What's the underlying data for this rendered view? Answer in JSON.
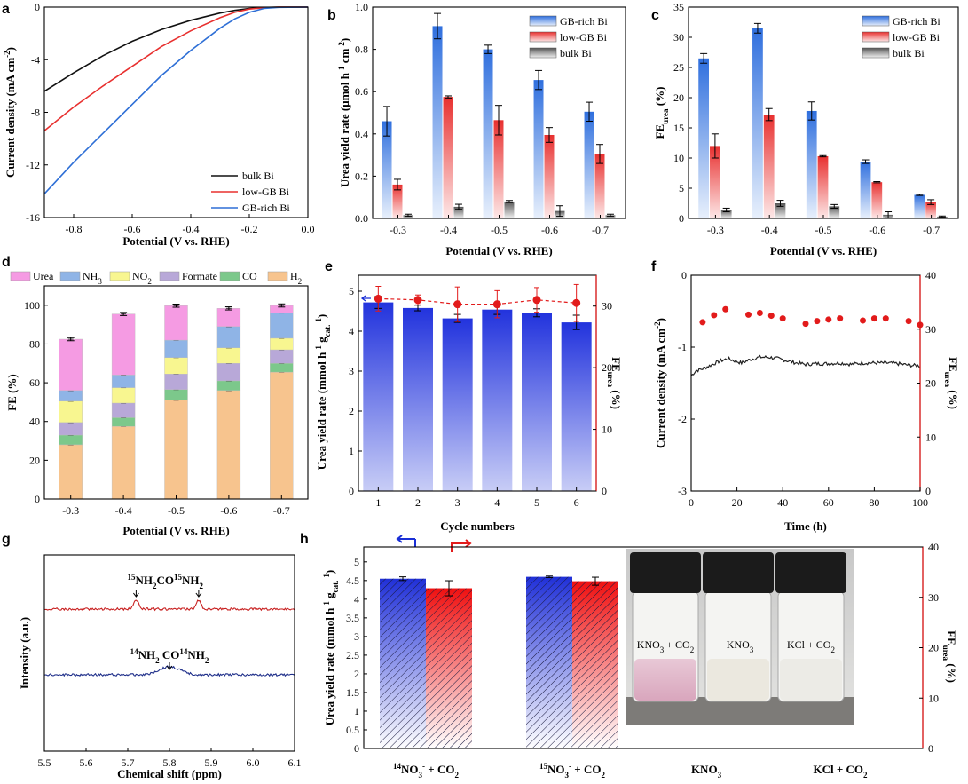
{
  "panel_labels": [
    "a",
    "b",
    "c",
    "d",
    "e",
    "f",
    "g",
    "h"
  ],
  "chart_data": [
    {
      "id": "a",
      "type": "line",
      "xlabel": "Potential (V vs. RHE)",
      "ylabel": "Current density (mA cm-2)",
      "xlim": [
        -0.9,
        0.0
      ],
      "ylim": [
        -16,
        0
      ],
      "xticks": [
        "-0.8",
        "-0.6",
        "-0.4",
        "-0.2",
        "0.0"
      ],
      "yticks": [
        "-16",
        "-12",
        "-8",
        "-4",
        "0"
      ],
      "legend_position": "bottom-right",
      "series": [
        {
          "name": "bulk Bi",
          "color": "#111111",
          "x": [
            -0.9,
            -0.8,
            -0.7,
            -0.6,
            -0.5,
            -0.4,
            -0.3,
            -0.25,
            -0.2,
            -0.15,
            -0.1,
            0.0
          ],
          "y": [
            -6.4,
            -5.0,
            -3.7,
            -2.6,
            -1.7,
            -1.0,
            -0.45,
            -0.25,
            -0.1,
            -0.03,
            0,
            0
          ]
        },
        {
          "name": "low-GB Bi",
          "color": "#e8302f",
          "x": [
            -0.9,
            -0.8,
            -0.7,
            -0.6,
            -0.5,
            -0.4,
            -0.3,
            -0.25,
            -0.2,
            -0.15,
            -0.1,
            0.0
          ],
          "y": [
            -9.4,
            -7.6,
            -6.0,
            -4.5,
            -3.0,
            -1.8,
            -0.8,
            -0.4,
            -0.15,
            -0.05,
            0,
            0
          ]
        },
        {
          "name": "GB-rich Bi",
          "color": "#2e6fd6",
          "x": [
            -0.9,
            -0.8,
            -0.7,
            -0.6,
            -0.5,
            -0.4,
            -0.3,
            -0.25,
            -0.2,
            -0.15,
            -0.1,
            0.0
          ],
          "y": [
            -14.2,
            -11.8,
            -9.6,
            -7.4,
            -5.2,
            -3.3,
            -1.6,
            -0.9,
            -0.4,
            -0.1,
            -0.02,
            0
          ]
        }
      ]
    },
    {
      "id": "b",
      "type": "bar",
      "xlabel": "Potential (V vs. RHE)",
      "ylabel": "Urea yield rate (μmol h-1 cm-2)",
      "ylim": [
        0,
        1.0
      ],
      "yticks": [
        "0.0",
        "0.2",
        "0.4",
        "0.6",
        "0.8",
        "1.0"
      ],
      "categories": [
        "-0.3",
        "-0.4",
        "-0.5",
        "-0.6",
        "-0.7"
      ],
      "legend_position": "top-right",
      "series": [
        {
          "name": "GB-rich Bi",
          "color": "#3b7de0",
          "values": [
            0.46,
            0.91,
            0.8,
            0.655,
            0.505
          ],
          "err": [
            0.07,
            0.06,
            0.02,
            0.045,
            0.045
          ]
        },
        {
          "name": "low-GB Bi",
          "color": "#e8302f",
          "values": [
            0.16,
            0.575,
            0.465,
            0.395,
            0.305
          ],
          "err": [
            0.025,
            0.005,
            0.07,
            0.035,
            0.045
          ]
        },
        {
          "name": "bulk Bi",
          "color": "#707070",
          "values": [
            0.015,
            0.055,
            0.08,
            0.035,
            0.015
          ],
          "err": [
            0.005,
            0.012,
            0.005,
            0.025,
            0.005
          ]
        }
      ]
    },
    {
      "id": "c",
      "type": "bar",
      "xlabel": "Potential (V vs. RHE)",
      "ylabel": "FE",
      "ylabel_sub": "urea",
      "ylabel_suffix": " (%)",
      "ylim": [
        0,
        35
      ],
      "yticks": [
        "0",
        "5",
        "10",
        "15",
        "20",
        "25",
        "30",
        "35"
      ],
      "categories": [
        "-0.3",
        "-0.4",
        "-0.5",
        "-0.6",
        "-0.7"
      ],
      "legend_position": "top-right",
      "series": [
        {
          "name": "GB-rich Bi",
          "color": "#3b7de0",
          "values": [
            26.5,
            31.5,
            17.8,
            9.4,
            3.9
          ],
          "err": [
            0.8,
            0.8,
            1.5,
            0.3,
            0.1
          ]
        },
        {
          "name": "low-GB Bi",
          "color": "#e8302f",
          "values": [
            12.0,
            17.2,
            10.3,
            6.0,
            2.7
          ],
          "err": [
            2.0,
            1.0,
            0.1,
            0.1,
            0.4
          ]
        },
        {
          "name": "bulk Bi",
          "color": "#707070",
          "values": [
            1.4,
            2.5,
            2.0,
            0.6,
            0.3
          ],
          "err": [
            0.3,
            0.5,
            0.3,
            0.5,
            0.1
          ]
        }
      ]
    },
    {
      "id": "d",
      "type": "bar",
      "xlabel": "Potential (V vs. RHE)",
      "ylabel": "FE (%)",
      "ylim": [
        0,
        100
      ],
      "yticks": [
        "0",
        "20",
        "40",
        "60",
        "80",
        "100"
      ],
      "categories": [
        "-0.3",
        "-0.4",
        "-0.5",
        "-0.6",
        "-0.7"
      ],
      "stacked": true,
      "legend": [
        "Urea",
        "NH3",
        "NO2",
        "Formate",
        "CO",
        "H2"
      ],
      "series": [
        {
          "name": "H2",
          "color": "#f7c48e",
          "values": [
            28,
            37.5,
            51,
            56,
            65.5
          ]
        },
        {
          "name": "CO",
          "color": "#7cc88b",
          "values": [
            5,
            4.5,
            5.5,
            5,
            4.5
          ]
        },
        {
          "name": "Formate",
          "color": "#b8a8d8",
          "values": [
            6.5,
            7.5,
            8,
            9,
            7
          ]
        },
        {
          "name": "NO2",
          "color": "#f8f690",
          "values": [
            11,
            8,
            8.5,
            8,
            6
          ]
        },
        {
          "name": "NH3",
          "color": "#8fb4e6",
          "values": [
            5.5,
            6.5,
            9,
            11,
            13
          ]
        },
        {
          "name": "Urea",
          "color": "#f59be3",
          "values": [
            26.5,
            31.5,
            17.8,
            9.4,
            3.9
          ]
        }
      ],
      "totals": [
        82.5,
        95.5,
        99.8,
        98.4,
        99.9
      ]
    },
    {
      "id": "e",
      "type": "bar",
      "xlabel": "Cycle numbers",
      "ylabel": "Urea yield rate (mmol h-1 gcat.-1)",
      "ylabel2": "FE",
      "ylabel2_sub": "urea",
      "ylabel2_suffix": " (%)",
      "ylim": [
        0,
        5.4
      ],
      "y2lim": [
        0,
        35
      ],
      "yticks": [
        "0",
        "1",
        "2",
        "3",
        "4",
        "5"
      ],
      "y2ticks": [
        "0",
        "10",
        "20",
        "30"
      ],
      "categories": [
        "1",
        "2",
        "3",
        "4",
        "5",
        "6"
      ],
      "series": [
        {
          "name": "Urea yield rate",
          "color": "#2c3fe0",
          "values": [
            4.72,
            4.58,
            4.32,
            4.54,
            4.46,
            4.22
          ],
          "err": [
            0.15,
            0.07,
            0.1,
            0.12,
            0.1,
            0.18
          ]
        },
        {
          "name": "FE urea",
          "color": "#e21b1b",
          "values": [
            31.2,
            31.0,
            30.3,
            30.3,
            31.0,
            30.5
          ],
          "err": [
            2.0,
            0.8,
            2.8,
            2.2,
            2.0,
            3.0
          ]
        }
      ]
    },
    {
      "id": "f",
      "type": "line",
      "xlabel": "Time (h)",
      "ylabel": "Current density (mA cm-2)",
      "ylabel2": "FE",
      "ylabel2_sub": "urea",
      "ylabel2_suffix": " (%)",
      "xlim": [
        0,
        100
      ],
      "ylim": [
        -3,
        0
      ],
      "y2lim": [
        0,
        40
      ],
      "xticks": [
        "0",
        "20",
        "40",
        "60",
        "80",
        "100"
      ],
      "yticks": [
        "0",
        "-1",
        "-2",
        "-3"
      ],
      "y2ticks": [
        "0",
        "10",
        "20",
        "30",
        "40"
      ],
      "series": [
        {
          "name": "Current density",
          "color": "#222222",
          "x": [
            0,
            2,
            5,
            8,
            12,
            16,
            18,
            22,
            26,
            30,
            34,
            38,
            42,
            46,
            50,
            55,
            60,
            65,
            70,
            75,
            80,
            85,
            90,
            95,
            100
          ],
          "y": [
            -1.4,
            -1.33,
            -1.3,
            -1.26,
            -1.2,
            -1.16,
            -1.18,
            -1.22,
            -1.17,
            -1.14,
            -1.14,
            -1.16,
            -1.19,
            -1.22,
            -1.24,
            -1.23,
            -1.23,
            -1.22,
            -1.24,
            -1.22,
            -1.22,
            -1.22,
            -1.23,
            -1.25,
            -1.26
          ]
        },
        {
          "name": "FE urea",
          "color": "#e21b1b",
          "x": [
            5,
            10,
            15,
            25,
            30,
            35,
            40,
            50,
            55,
            60,
            65,
            75,
            80,
            85,
            95,
            100
          ],
          "y": [
            31.3,
            32.6,
            33.7,
            32.7,
            33.0,
            32.5,
            32.0,
            31.0,
            31.5,
            31.8,
            32.0,
            31.6,
            32.0,
            32.0,
            31.5,
            30.8
          ]
        }
      ]
    },
    {
      "id": "g",
      "type": "line",
      "xlabel": "Chemical shift (ppm)",
      "ylabel": "Intensity (a.u.)",
      "xlim": [
        5.5,
        6.1
      ],
      "xticks": [
        "5.5",
        "5.6",
        "5.7",
        "5.8",
        "5.9",
        "6.0",
        "6.1"
      ],
      "annotations": [
        "15NH2CO15NH2",
        "14NH2 CO14NH2"
      ],
      "series": [
        {
          "name": "15N",
          "color": "#c82020",
          "peaks": [
            5.72,
            5.87
          ]
        },
        {
          "name": "14N",
          "color": "#1f2f8a",
          "peaks": [
            5.8
          ]
        }
      ]
    },
    {
      "id": "h",
      "type": "bar",
      "ylabel": "Urea yield rate (mmol h-1 gcat.-1)",
      "ylabel2": "FE",
      "ylabel2_sub": "urea",
      "ylabel2_suffix": " (%)",
      "ylim": [
        0,
        5.4
      ],
      "y2lim": [
        0,
        40
      ],
      "yticks": [
        "0",
        "0.5",
        "1",
        "1.5",
        "2",
        "2.5",
        "3",
        "3.5",
        "4",
        "4.5",
        "5"
      ],
      "y2ticks": [
        "0",
        "10",
        "20",
        "30",
        "40"
      ],
      "categories": [
        "14NO3- + CO2",
        "15NO3- + CO2",
        "KNO3",
        "KCl + CO2"
      ],
      "series": [
        {
          "name": "Urea yield rate",
          "color": "#2c3fe0",
          "values": [
            4.55,
            4.6,
            0,
            0
          ],
          "err": [
            0.05,
            0.02,
            0,
            0
          ]
        },
        {
          "name": "FE urea",
          "color": "#e8302f",
          "values": [
            31.8,
            33.2,
            0,
            0
          ],
          "err": [
            1.5,
            0.8,
            0,
            0
          ]
        }
      ],
      "inset_labels": [
        "KNO3 + CO2",
        "KNO3",
        "KCl + CO2"
      ]
    }
  ]
}
